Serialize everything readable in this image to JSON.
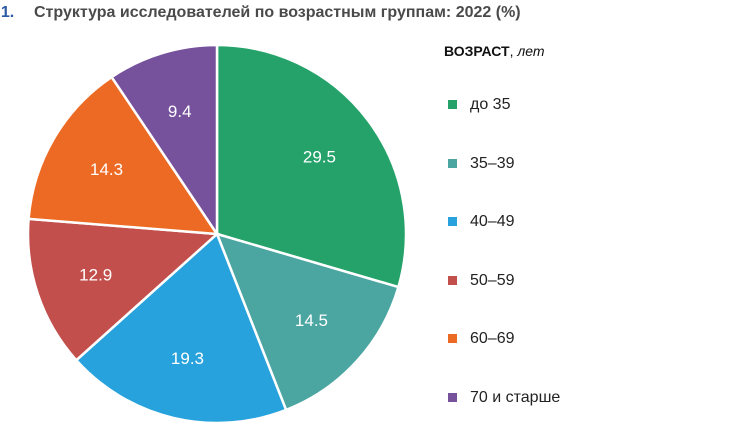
{
  "title": {
    "number": ". 1.",
    "text": "Структура исследователей по возрастным группам: 2022 (%)"
  },
  "legend": {
    "title_bold": "ВОЗРАСТ",
    "title_sep": ", ",
    "title_italic": "лет"
  },
  "chart_data": {
    "type": "pie",
    "categories": [
      "до 35",
      "35–39",
      "40–49",
      "50–59",
      "60–69",
      "70 и старше"
    ],
    "values": [
      29.5,
      14.5,
      19.3,
      12.9,
      14.3,
      9.4
    ],
    "value_labels": [
      "29.5",
      "14.5",
      "19.3",
      "12.9",
      "14.3",
      "9.4"
    ],
    "colors": [
      "#24a26a",
      "#4ba5a1",
      "#27a2dc",
      "#c24f4b",
      "#ec6a24",
      "#76519c"
    ],
    "start_angle": "12 o'clock",
    "direction": "clockwise",
    "legend_placement": "right"
  }
}
